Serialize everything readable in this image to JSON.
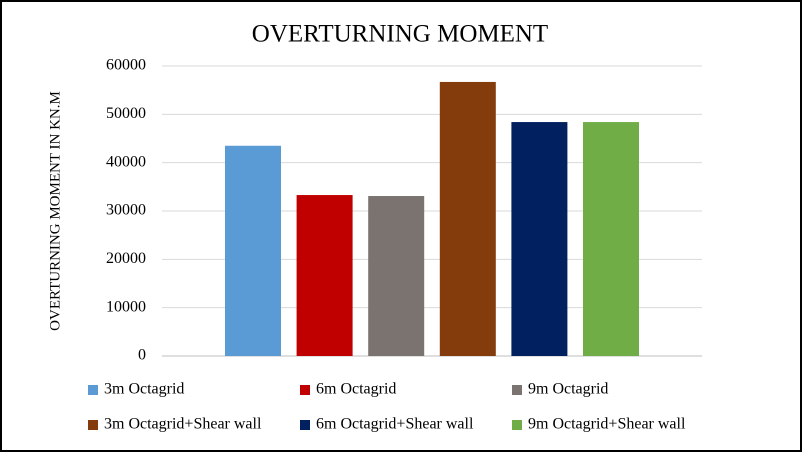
{
  "chart_data": {
    "type": "bar",
    "title": "OVERTURNING MOMENT",
    "ylabel": "OVERTURNING MOMENT IN KN.M",
    "categories": [
      null
    ],
    "series": [
      {
        "name": "3m Octagrid",
        "color": "#5b9bd5",
        "values": [
          43500
        ]
      },
      {
        "name": "6m Octagrid",
        "color": "#c00000",
        "values": [
          33300
        ]
      },
      {
        "name": "9m Octagrid",
        "color": "#7b7370",
        "values": [
          33100
        ]
      },
      {
        "name": "3m Octagrid+Shear wall",
        "color": "#843c0c",
        "values": [
          56700
        ]
      },
      {
        "name": "6m Octagrid+Shear wall",
        "color": "#002060",
        "values": [
          48400
        ]
      },
      {
        "name": "9m Octagrid+Shear wall",
        "color": "#70ad47",
        "values": [
          48400
        ]
      }
    ],
    "ylim": [
      0,
      60000
    ],
    "yticks": [
      0,
      10000,
      20000,
      30000,
      40000,
      50000,
      60000
    ],
    "grid": true,
    "legend": "bottom"
  }
}
